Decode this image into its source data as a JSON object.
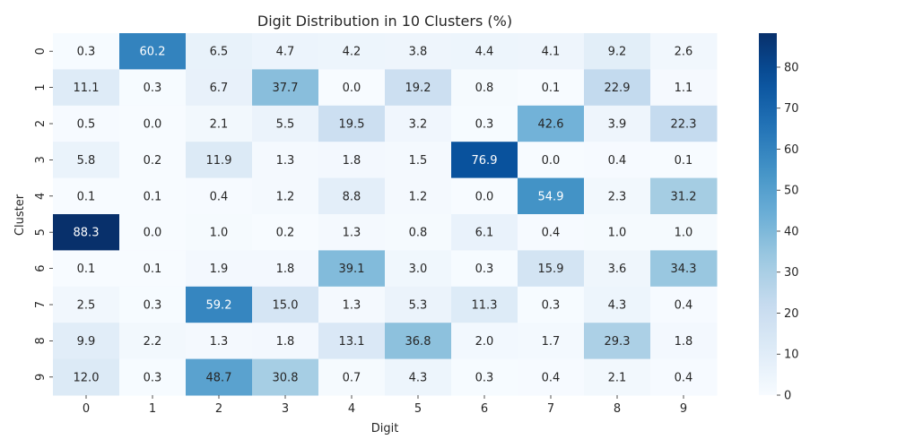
{
  "chart_data": {
    "type": "heatmap",
    "title": "Digit Distribution in 10 Clusters (%)",
    "xlabel": "Digit",
    "ylabel": "Cluster",
    "x_categories": [
      "0",
      "1",
      "2",
      "3",
      "4",
      "5",
      "6",
      "7",
      "8",
      "9"
    ],
    "y_categories": [
      "0",
      "1",
      "2",
      "3",
      "4",
      "5",
      "6",
      "7",
      "8",
      "9"
    ],
    "values": [
      [
        0.3,
        60.2,
        6.5,
        4.7,
        4.2,
        3.8,
        4.4,
        4.1,
        9.2,
        2.6
      ],
      [
        11.1,
        0.3,
        6.7,
        37.7,
        0.0,
        19.2,
        0.8,
        0.1,
        22.9,
        1.1
      ],
      [
        0.5,
        0.0,
        2.1,
        5.5,
        19.5,
        3.2,
        0.3,
        42.6,
        3.9,
        22.3
      ],
      [
        5.8,
        0.2,
        11.9,
        1.3,
        1.8,
        1.5,
        76.9,
        0.0,
        0.4,
        0.1
      ],
      [
        0.1,
        0.1,
        0.4,
        1.2,
        8.8,
        1.2,
        0.0,
        54.9,
        2.3,
        31.2
      ],
      [
        88.3,
        0.0,
        1.0,
        0.2,
        1.3,
        0.8,
        6.1,
        0.4,
        1.0,
        1.0
      ],
      [
        0.1,
        0.1,
        1.9,
        1.8,
        39.1,
        3.0,
        0.3,
        15.9,
        3.6,
        34.3
      ],
      [
        2.5,
        0.3,
        59.2,
        15.0,
        1.3,
        5.3,
        11.3,
        0.3,
        4.3,
        0.4
      ],
      [
        9.9,
        2.2,
        1.3,
        1.8,
        13.1,
        36.8,
        2.0,
        1.7,
        29.3,
        1.8
      ],
      [
        12.0,
        0.3,
        48.7,
        30.8,
        0.7,
        4.3,
        0.3,
        0.4,
        2.1,
        0.4
      ]
    ],
    "colormap": "Blues",
    "vmin": 0,
    "vmax": 88.3,
    "colorbar_ticks": [
      0,
      10,
      20,
      30,
      40,
      50,
      60,
      70,
      80
    ]
  }
}
